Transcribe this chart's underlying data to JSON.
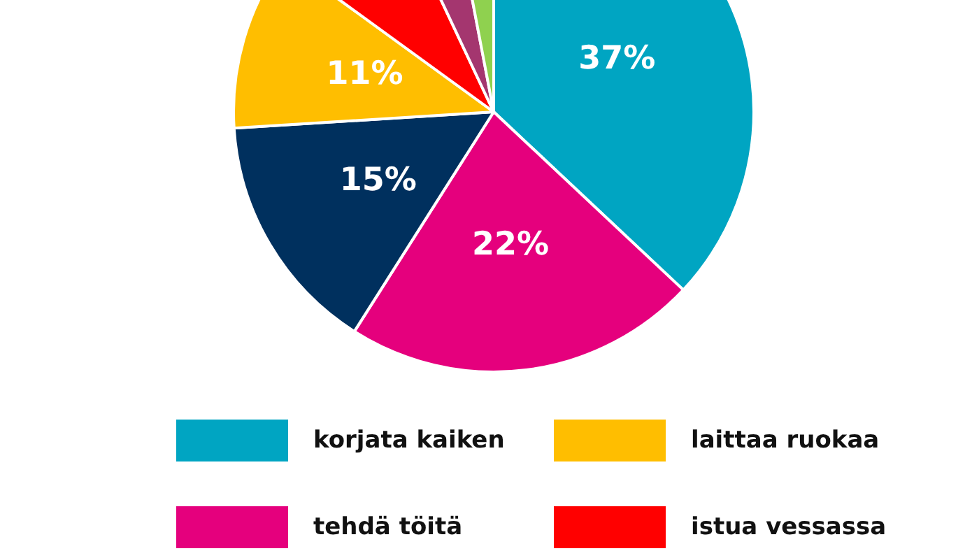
{
  "chart_data": {
    "type": "pie",
    "categories": [
      "korjata kaiken",
      "tehdä töitä",
      null,
      "laittaa ruokaa",
      "istua vessassa",
      null,
      null
    ],
    "values": [
      37,
      22,
      15,
      11,
      8,
      4,
      3
    ],
    "colors": [
      "#00a5c2",
      "#e5007d",
      "#00305e",
      "#ffbe00",
      "#ff0000",
      "#a4366f",
      "#8fd14f"
    ],
    "value_labels": [
      "37%",
      "22%",
      "15%",
      "11%",
      null,
      null,
      null
    ],
    "legend": "bottom"
  }
}
